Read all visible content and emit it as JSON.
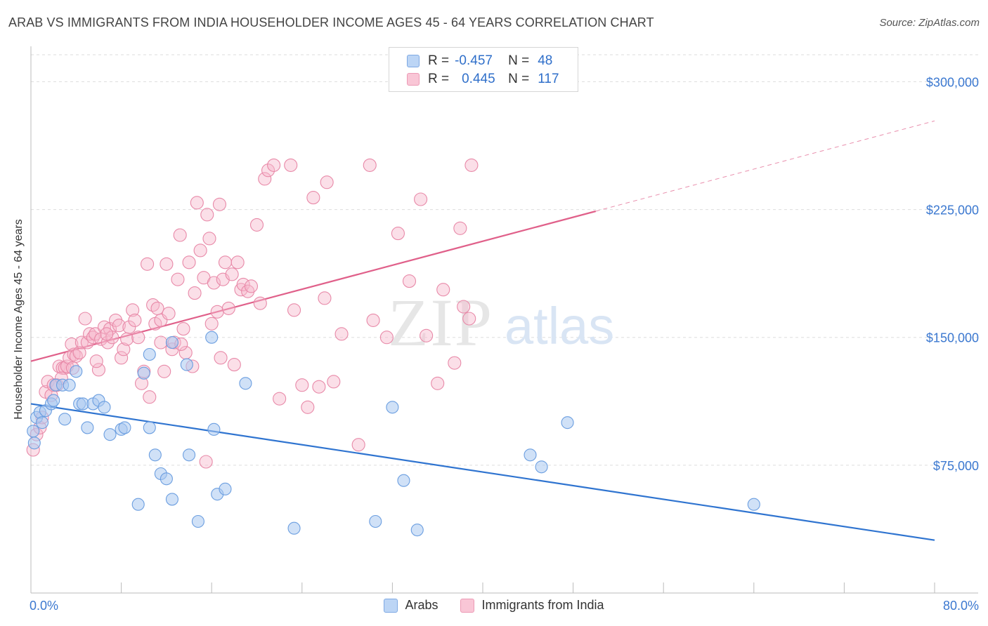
{
  "header": {
    "title": "ARAB VS IMMIGRANTS FROM INDIA HOUSEHOLDER INCOME AGES 45 - 64 YEARS CORRELATION CHART",
    "source": "Source: ZipAtlas.com"
  },
  "watermark": {
    "zip": "ZIP",
    "atlas": "atlas"
  },
  "legend_box": {
    "rows": [
      {
        "r_label": "R =",
        "r_value": "-0.457",
        "n_label": "N =",
        "n_value": "48"
      },
      {
        "r_label": "R =",
        "r_value": "0.445",
        "n_label": "N =",
        "n_value": "117"
      }
    ]
  },
  "bottom_legend": {
    "arabs": "Arabs",
    "india": "Immigrants from India"
  },
  "colors": {
    "arabs_fill": "#a9c8f0",
    "arabs_stroke": "#6b9ee0",
    "arabs_line": "#2f74d0",
    "india_fill": "#f6b8cc",
    "india_stroke": "#e889a8",
    "india_line": "#e0608a",
    "axis_text": "#3b78d0",
    "grid": "#dddddd"
  },
  "chart_data": {
    "type": "scatter",
    "title": "ARAB VS IMMIGRANTS FROM INDIA HOUSEHOLDER INCOME AGES 45 - 64 YEARS CORRELATION CHART",
    "xlabel": "",
    "ylabel": "Householder Income Ages 45 - 64 years",
    "xlim": [
      0,
      80
    ],
    "ylim": [
      0,
      315000
    ],
    "x_tick_labels": [
      "0.0%",
      "80.0%"
    ],
    "y_ticks": [
      75000,
      150000,
      225000,
      300000
    ],
    "y_tick_labels": [
      "$75,000",
      "$150,000",
      "$225,000",
      "$300,000"
    ],
    "grid": true,
    "legend_position": "top-center",
    "series": [
      {
        "name": "Arabs",
        "R": -0.457,
        "N": 48,
        "trend": {
          "x": [
            0.0,
            80.0
          ],
          "y": [
            111000,
            31000
          ]
        },
        "points": [
          [
            0.3,
            88000
          ],
          [
            0.5,
            103000
          ],
          [
            0.8,
            106000
          ],
          [
            1.0,
            100000
          ],
          [
            1.3,
            107000
          ],
          [
            1.8,
            111000
          ],
          [
            2.0,
            113000
          ],
          [
            2.2,
            122000
          ],
          [
            2.8,
            122000
          ],
          [
            3.0,
            102000
          ],
          [
            3.4,
            122000
          ],
          [
            4.0,
            130000
          ],
          [
            4.3,
            111000
          ],
          [
            4.6,
            111000
          ],
          [
            5.0,
            97000
          ],
          [
            5.5,
            111000
          ],
          [
            6.0,
            113000
          ],
          [
            6.5,
            109000
          ],
          [
            7.0,
            93000
          ],
          [
            8.0,
            96000
          ],
          [
            8.3,
            97000
          ],
          [
            9.5,
            52000
          ],
          [
            10.0,
            129000
          ],
          [
            10.5,
            140000
          ],
          [
            10.5,
            97000
          ],
          [
            11.0,
            81000
          ],
          [
            11.5,
            70000
          ],
          [
            12.0,
            67000
          ],
          [
            12.5,
            55000
          ],
          [
            12.5,
            147000
          ],
          [
            13.8,
            134000
          ],
          [
            14.0,
            81000
          ],
          [
            14.8,
            42000
          ],
          [
            16.0,
            150000
          ],
          [
            16.2,
            96000
          ],
          [
            16.5,
            58000
          ],
          [
            17.2,
            61000
          ],
          [
            19.0,
            123000
          ],
          [
            23.3,
            38000
          ],
          [
            30.5,
            42000
          ],
          [
            32.0,
            109000
          ],
          [
            33.0,
            66000
          ],
          [
            34.2,
            37000
          ],
          [
            44.2,
            81000
          ],
          [
            45.2,
            74000
          ],
          [
            47.5,
            100000
          ],
          [
            64.0,
            52000
          ],
          [
            0.2,
            95000
          ]
        ]
      },
      {
        "name": "Immigrants from India",
        "R": 0.445,
        "N": 117,
        "trend": {
          "x": [
            0.0,
            50.0
          ],
          "y": [
            136000,
            224000
          ]
        },
        "trend_extension": {
          "x": [
            50.0,
            80.0
          ],
          "y": [
            224000,
            277000
          ]
        },
        "points": [
          [
            0.2,
            84000
          ],
          [
            0.5,
            93000
          ],
          [
            0.8,
            97000
          ],
          [
            1.0,
            103000
          ],
          [
            1.3,
            118000
          ],
          [
            1.5,
            124000
          ],
          [
            1.8,
            116000
          ],
          [
            2.0,
            122000
          ],
          [
            2.3,
            122000
          ],
          [
            2.5,
            133000
          ],
          [
            2.8,
            132000
          ],
          [
            3.0,
            132000
          ],
          [
            3.2,
            133000
          ],
          [
            3.4,
            138000
          ],
          [
            3.6,
            146000
          ],
          [
            3.8,
            140000
          ],
          [
            4.0,
            139000
          ],
          [
            4.3,
            141000
          ],
          [
            4.5,
            147000
          ],
          [
            4.8,
            161000
          ],
          [
            5.0,
            147000
          ],
          [
            5.2,
            152000
          ],
          [
            5.5,
            150000
          ],
          [
            5.7,
            152000
          ],
          [
            6.0,
            131000
          ],
          [
            6.2,
            149000
          ],
          [
            6.5,
            156000
          ],
          [
            6.8,
            147000
          ],
          [
            7.0,
            155000
          ],
          [
            7.2,
            150000
          ],
          [
            7.5,
            160000
          ],
          [
            7.8,
            157000
          ],
          [
            8.0,
            138000
          ],
          [
            8.2,
            143000
          ],
          [
            8.5,
            149000
          ],
          [
            8.7,
            156000
          ],
          [
            9.0,
            166000
          ],
          [
            9.2,
            160000
          ],
          [
            9.5,
            150000
          ],
          [
            9.8,
            123000
          ],
          [
            10.0,
            130000
          ],
          [
            10.3,
            193000
          ],
          [
            10.5,
            115000
          ],
          [
            10.8,
            169000
          ],
          [
            11.0,
            158000
          ],
          [
            11.2,
            167000
          ],
          [
            11.5,
            160000
          ],
          [
            11.8,
            130000
          ],
          [
            12.0,
            193000
          ],
          [
            12.2,
            164000
          ],
          [
            12.5,
            143000
          ],
          [
            12.7,
            147000
          ],
          [
            13.0,
            184000
          ],
          [
            13.2,
            210000
          ],
          [
            13.5,
            155000
          ],
          [
            13.7,
            141000
          ],
          [
            14.0,
            194000
          ],
          [
            14.3,
            133000
          ],
          [
            14.5,
            176000
          ],
          [
            14.7,
            229000
          ],
          [
            15.0,
            201000
          ],
          [
            15.3,
            185000
          ],
          [
            15.6,
            222000
          ],
          [
            15.8,
            208000
          ],
          [
            16.0,
            158000
          ],
          [
            16.2,
            182000
          ],
          [
            16.5,
            165000
          ],
          [
            16.7,
            228000
          ],
          [
            17.0,
            184000
          ],
          [
            17.2,
            194000
          ],
          [
            17.5,
            167000
          ],
          [
            17.8,
            187000
          ],
          [
            18.0,
            134000
          ],
          [
            18.3,
            194000
          ],
          [
            18.6,
            178000
          ],
          [
            18.8,
            181000
          ],
          [
            19.2,
            177000
          ],
          [
            19.5,
            180000
          ],
          [
            20.0,
            216000
          ],
          [
            20.3,
            170000
          ],
          [
            20.7,
            243000
          ],
          [
            21.0,
            248000
          ],
          [
            21.5,
            251000
          ],
          [
            22.0,
            114000
          ],
          [
            23.0,
            251000
          ],
          [
            23.3,
            166000
          ],
          [
            24.0,
            122000
          ],
          [
            24.5,
            109000
          ],
          [
            25.0,
            232000
          ],
          [
            25.5,
            121000
          ],
          [
            26.0,
            173000
          ],
          [
            26.2,
            241000
          ],
          [
            26.8,
            124000
          ],
          [
            27.5,
            152000
          ],
          [
            29.0,
            87000
          ],
          [
            30.0,
            251000
          ],
          [
            30.3,
            160000
          ],
          [
            31.5,
            150000
          ],
          [
            32.5,
            211000
          ],
          [
            33.5,
            183000
          ],
          [
            34.5,
            231000
          ],
          [
            35.0,
            151000
          ],
          [
            36.0,
            123000
          ],
          [
            36.5,
            178000
          ],
          [
            37.5,
            135000
          ],
          [
            38.0,
            214000
          ],
          [
            38.3,
            168000
          ],
          [
            38.8,
            161000
          ],
          [
            39.0,
            251000
          ],
          [
            11.5,
            147000
          ],
          [
            5.8,
            136000
          ],
          [
            3.7,
            132000
          ],
          [
            15.5,
            77000
          ],
          [
            6.7,
            152000
          ],
          [
            16.8,
            138000
          ],
          [
            13.3,
            146000
          ],
          [
            2.7,
            126000
          ]
        ]
      }
    ]
  }
}
